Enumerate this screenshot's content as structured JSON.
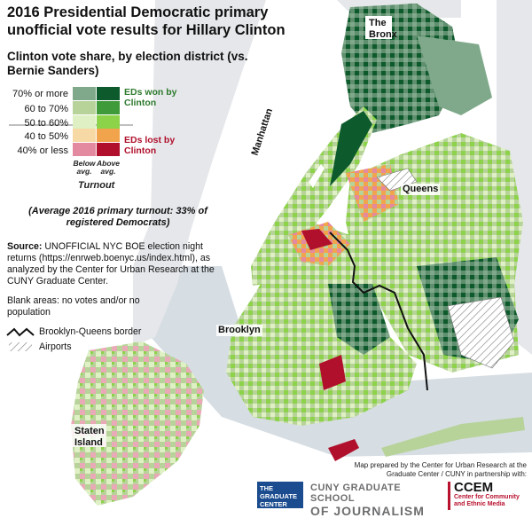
{
  "title": "2016 Presidential Democratic primary unofficial vote results for Hillary Clinton",
  "subtitle": "Clinton vote share, by election district (vs. Bernie Sanders)",
  "legend": {
    "rows": [
      {
        "label": "70% or more",
        "below": "#7fa98a",
        "above": "#0d5a2c"
      },
      {
        "label": "60 to 70%",
        "below": "#b7d39a",
        "above": "#3f9a3a"
      },
      {
        "label": "50 to 60%",
        "below": "#dff0c4",
        "above": "#8cd34a"
      },
      {
        "label": "40 to 50%",
        "below": "#f6d9a5",
        "above": "#f2a44c"
      },
      {
        "label": "40% or less",
        "below": "#e38aa0",
        "above": "#b0102c"
      }
    ],
    "won_label": "EDs won by Clinton",
    "lost_label": "EDs lost by Clinton",
    "won_color": "#2e7a2e",
    "lost_color": "#b0102c",
    "below_label": "Below avg.",
    "above_label": "Above avg.",
    "turnout_label": "Turnout"
  },
  "average_note": "(Average 2016 primary turnout: 33% of registered Democrats)",
  "source_label": "Source:",
  "source_text": "UNOFFICIAL NYC BOE election night returns (https://enrweb.boenyc.us/index.html), as analyzed by the Center for Urban Research at the CUNY Graduate Center.",
  "blank_note": "Blank areas: no votes and/or no population",
  "border_label": "Brooklyn-Queens border",
  "airports_label": "Airports",
  "places": {
    "bronx": "The Bronx",
    "manhattan": "Manhattan",
    "queens": "Queens",
    "brooklyn": "Brooklyn",
    "staten_island": "Staten Island"
  },
  "credit": "Map prepared by the Center for Urban Research at the Graduate Center / CUNY in partnership with:",
  "logos": {
    "graduate_center": "THE GRADUATE CENTER",
    "cuny_journalism_1": "CUNY GRADUATE SCHOOL",
    "cuny_journalism_2": "OF JOURNALISM",
    "ccem_big": "CCEM",
    "ccem_small": "Center for Community and Ethnic Media"
  }
}
